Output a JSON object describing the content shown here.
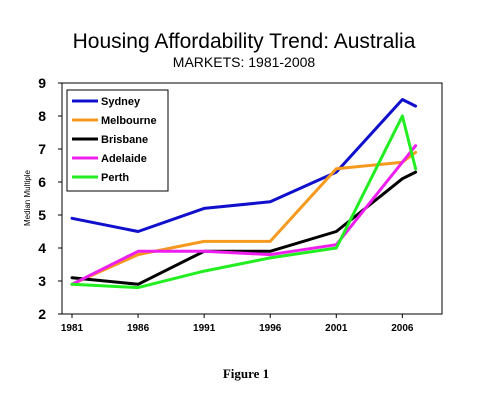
{
  "header": {
    "title": "Housing Affordability Trend: Australia",
    "subtitle": "MARKETS: 1981-2008"
  },
  "caption": "Figure 1",
  "chart_data": {
    "type": "line",
    "title": "Housing Affordability Trend: Australia",
    "subtitle": "MARKETS: 1981-2008",
    "xlabel": "",
    "ylabel": "Median Multiple",
    "xlim": [
      1981,
      2009
    ],
    "ylim": [
      2,
      9
    ],
    "x_ticks": [
      "1981",
      "1986",
      "1991",
      "1996",
      "2001",
      "2006"
    ],
    "y_ticks": [
      "2",
      "3",
      "4",
      "5",
      "6",
      "7",
      "8",
      "9"
    ],
    "grid": false,
    "legend": "top-left",
    "series": [
      {
        "name": "Sydney",
        "color": "#1010cc",
        "x": [
          1981,
          1986,
          1991,
          1996,
          2001,
          2006,
          2007
        ],
        "values": [
          4.9,
          4.5,
          5.2,
          5.4,
          6.3,
          8.5,
          8.3
        ]
      },
      {
        "name": "Melbourne",
        "color": "#f59a1f",
        "x": [
          1981,
          1986,
          1991,
          1996,
          2001,
          2006,
          2007
        ],
        "values": [
          2.9,
          3.8,
          4.2,
          4.2,
          6.4,
          6.6,
          6.9
        ]
      },
      {
        "name": "Brisbane",
        "color": "#000000",
        "x": [
          1981,
          1986,
          1991,
          1996,
          2001,
          2006,
          2007
        ],
        "values": [
          3.1,
          2.9,
          3.9,
          3.9,
          4.5,
          6.1,
          6.3
        ]
      },
      {
        "name": "Adelaide",
        "color": "#ee1fee",
        "x": [
          1981,
          1986,
          1991,
          1996,
          2001,
          2006,
          2007
        ],
        "values": [
          2.9,
          3.9,
          3.9,
          3.8,
          4.1,
          6.6,
          7.1
        ]
      },
      {
        "name": "Perth",
        "color": "#22ee22",
        "x": [
          1981,
          1986,
          1991,
          1996,
          2001,
          2006,
          2007
        ],
        "values": [
          2.9,
          2.8,
          3.3,
          3.7,
          4.0,
          8.0,
          6.4
        ]
      }
    ]
  }
}
